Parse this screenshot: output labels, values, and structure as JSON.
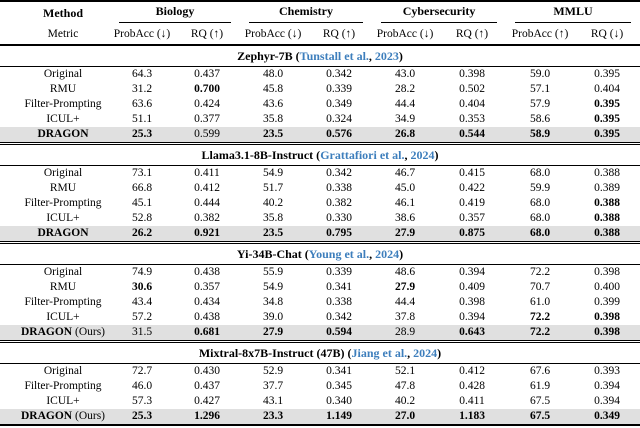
{
  "colors": {
    "citation_blue": "#3d7ebc",
    "highlight_gray": "#e0e0e0",
    "rule_black": "#000000"
  },
  "header": {
    "method": "Method",
    "metric": "Metric",
    "groups": [
      {
        "label": "Biology",
        "sub": [
          "ProbAcc (↓)",
          "RQ (↑)"
        ]
      },
      {
        "label": "Chemistry",
        "sub": [
          "ProbAcc (↓)",
          "RQ (↑)"
        ]
      },
      {
        "label": "Cybersecurity",
        "sub": [
          "ProbAcc (↓)",
          "RQ (↑)"
        ]
      },
      {
        "label": "MMLU",
        "sub": [
          "ProbAcc (↑)",
          "RQ (↓)"
        ]
      }
    ]
  },
  "sections": [
    {
      "title_prefix": "Zephyr-7B (",
      "citation": {
        "authors": "Tunstall et al.",
        "sep": ", ",
        "year": "2023"
      },
      "title_suffix": ")",
      "rows": [
        {
          "method": "Original",
          "bold_method": false,
          "suffix": "",
          "highlight": false,
          "values": [
            "64.3",
            "0.437",
            "48.0",
            "0.342",
            "43.0",
            "0.398",
            "59.0",
            "0.395"
          ],
          "bold": [
            0,
            0,
            0,
            0,
            0,
            0,
            0,
            0
          ]
        },
        {
          "method": "RMU",
          "bold_method": false,
          "suffix": "",
          "highlight": false,
          "values": [
            "31.2",
            "0.700",
            "45.8",
            "0.339",
            "28.2",
            "0.502",
            "57.1",
            "0.404"
          ],
          "bold": [
            0,
            1,
            0,
            0,
            0,
            0,
            0,
            0
          ]
        },
        {
          "method": "Filter-Prompting",
          "bold_method": false,
          "suffix": "",
          "highlight": false,
          "values": [
            "63.6",
            "0.424",
            "43.6",
            "0.349",
            "44.4",
            "0.404",
            "57.9",
            "0.395"
          ],
          "bold": [
            0,
            0,
            0,
            0,
            0,
            0,
            0,
            1
          ]
        },
        {
          "method": "ICUL+",
          "bold_method": false,
          "suffix": "",
          "highlight": false,
          "values": [
            "51.1",
            "0.377",
            "35.8",
            "0.324",
            "34.9",
            "0.353",
            "58.6",
            "0.395"
          ],
          "bold": [
            0,
            0,
            0,
            0,
            0,
            0,
            0,
            1
          ]
        },
        {
          "method": "DRAGON",
          "bold_method": true,
          "suffix": "",
          "highlight": true,
          "values": [
            "25.3",
            "0.599",
            "23.5",
            "0.576",
            "26.8",
            "0.544",
            "58.9",
            "0.395"
          ],
          "bold": [
            1,
            0,
            1,
            1,
            1,
            1,
            1,
            1
          ]
        }
      ]
    },
    {
      "title_prefix": "Llama3.1-8B-Instruct (",
      "citation": {
        "authors": "Grattafiori et al.",
        "sep": ", ",
        "year": "2024"
      },
      "title_suffix": ")",
      "rows": [
        {
          "method": "Original",
          "bold_method": false,
          "suffix": "",
          "highlight": false,
          "values": [
            "73.1",
            "0.411",
            "54.9",
            "0.342",
            "46.7",
            "0.415",
            "68.0",
            "0.388"
          ],
          "bold": [
            0,
            0,
            0,
            0,
            0,
            0,
            0,
            0
          ]
        },
        {
          "method": "RMU",
          "bold_method": false,
          "suffix": "",
          "highlight": false,
          "values": [
            "66.8",
            "0.412",
            "51.7",
            "0.338",
            "45.0",
            "0.422",
            "59.9",
            "0.389"
          ],
          "bold": [
            0,
            0,
            0,
            0,
            0,
            0,
            0,
            0
          ]
        },
        {
          "method": "Filter-Prompting",
          "bold_method": false,
          "suffix": "",
          "highlight": false,
          "values": [
            "45.1",
            "0.444",
            "40.2",
            "0.382",
            "46.1",
            "0.419",
            "68.0",
            "0.388"
          ],
          "bold": [
            0,
            0,
            0,
            0,
            0,
            0,
            0,
            1
          ]
        },
        {
          "method": "ICUL+",
          "bold_method": false,
          "suffix": "",
          "highlight": false,
          "values": [
            "52.8",
            "0.382",
            "35.8",
            "0.330",
            "38.6",
            "0.357",
            "68.0",
            "0.388"
          ],
          "bold": [
            0,
            0,
            0,
            0,
            0,
            0,
            0,
            1
          ]
        },
        {
          "method": "DRAGON",
          "bold_method": true,
          "suffix": "",
          "highlight": true,
          "values": [
            "26.2",
            "0.921",
            "23.5",
            "0.795",
            "27.9",
            "0.875",
            "68.0",
            "0.388"
          ],
          "bold": [
            1,
            1,
            1,
            1,
            1,
            1,
            1,
            1
          ]
        }
      ]
    },
    {
      "title_prefix": "Yi-34B-Chat (",
      "citation": {
        "authors": "Young et al.",
        "sep": ", ",
        "year": "2024"
      },
      "title_suffix": ")",
      "rows": [
        {
          "method": "Original",
          "bold_method": false,
          "suffix": "",
          "highlight": false,
          "values": [
            "74.9",
            "0.438",
            "55.9",
            "0.339",
            "48.6",
            "0.394",
            "72.2",
            "0.398"
          ],
          "bold": [
            0,
            0,
            0,
            0,
            0,
            0,
            0,
            0
          ]
        },
        {
          "method": "RMU",
          "bold_method": false,
          "suffix": "",
          "highlight": false,
          "values": [
            "30.6",
            "0.357",
            "54.9",
            "0.341",
            "27.9",
            "0.409",
            "70.7",
            "0.400"
          ],
          "bold": [
            1,
            0,
            0,
            0,
            1,
            0,
            0,
            0
          ]
        },
        {
          "method": "Filter-Prompting",
          "bold_method": false,
          "suffix": "",
          "highlight": false,
          "values": [
            "43.4",
            "0.434",
            "34.8",
            "0.338",
            "44.4",
            "0.398",
            "61.0",
            "0.399"
          ],
          "bold": [
            0,
            0,
            0,
            0,
            0,
            0,
            0,
            0
          ]
        },
        {
          "method": "ICUL+",
          "bold_method": false,
          "suffix": "",
          "highlight": false,
          "values": [
            "57.2",
            "0.438",
            "39.0",
            "0.342",
            "37.8",
            "0.394",
            "72.2",
            "0.398"
          ],
          "bold": [
            0,
            0,
            0,
            0,
            0,
            0,
            1,
            1
          ]
        },
        {
          "method": "DRAGON",
          "bold_method": true,
          "suffix": " (Ours)",
          "highlight": true,
          "values": [
            "31.5",
            "0.681",
            "27.9",
            "0.594",
            "28.9",
            "0.643",
            "72.2",
            "0.398"
          ],
          "bold": [
            0,
            1,
            1,
            1,
            0,
            1,
            1,
            1
          ]
        }
      ]
    },
    {
      "title_prefix": "Mixtral-8x7B-Instruct (47B) (",
      "citation": {
        "authors": "Jiang et al.",
        "sep": ", ",
        "year": "2024"
      },
      "title_suffix": ")",
      "rows": [
        {
          "method": "Original",
          "bold_method": false,
          "suffix": "",
          "highlight": false,
          "values": [
            "72.7",
            "0.430",
            "52.9",
            "0.341",
            "52.1",
            "0.412",
            "67.6",
            "0.393"
          ],
          "bold": [
            0,
            0,
            0,
            0,
            0,
            0,
            0,
            0
          ]
        },
        {
          "method": "Filter-Prompting",
          "bold_method": false,
          "suffix": "",
          "highlight": false,
          "values": [
            "46.0",
            "0.437",
            "37.7",
            "0.345",
            "47.8",
            "0.428",
            "61.9",
            "0.394"
          ],
          "bold": [
            0,
            0,
            0,
            0,
            0,
            0,
            0,
            0
          ]
        },
        {
          "method": "ICUL+",
          "bold_method": false,
          "suffix": "",
          "highlight": false,
          "values": [
            "57.3",
            "0.427",
            "43.1",
            "0.340",
            "40.2",
            "0.411",
            "67.5",
            "0.394"
          ],
          "bold": [
            0,
            0,
            0,
            0,
            0,
            0,
            0,
            0
          ]
        },
        {
          "method": "DRAGON",
          "bold_method": true,
          "suffix": " (Ours)",
          "highlight": true,
          "values": [
            "25.3",
            "1.296",
            "23.3",
            "1.149",
            "27.0",
            "1.183",
            "67.5",
            "0.349"
          ],
          "bold": [
            1,
            1,
            1,
            1,
            1,
            1,
            1,
            1
          ]
        }
      ]
    }
  ]
}
